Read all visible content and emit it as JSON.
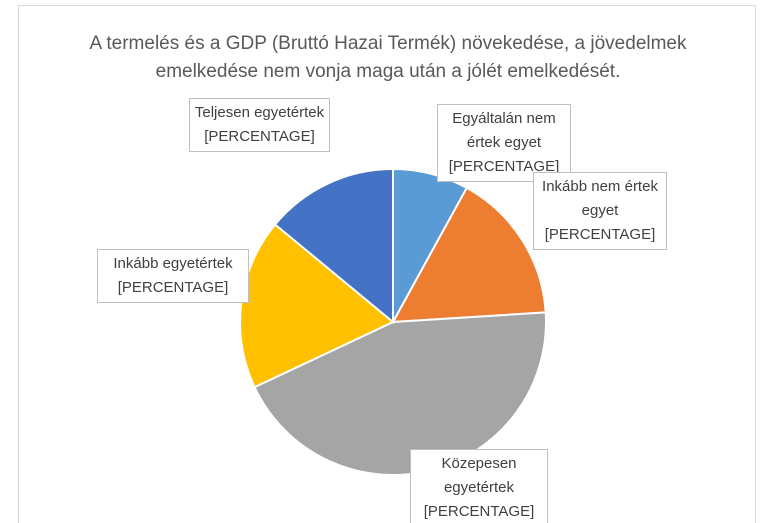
{
  "chart_data": {
    "type": "pie",
    "title": "A termelés és a GDP (Bruttó Hazai Termék) növekedése, a jövedelmek emelkedése nem vonja maga után a jólét emelkedését.",
    "categories": [
      "Egyáltalán nem értek egyet",
      "Inkább nem értek egyet",
      "Közepesen egyetértek",
      "Inkább egyetértek",
      "Teljesen egyetértek"
    ],
    "values": [
      8,
      16,
      44,
      18,
      14
    ],
    "value_labels": [
      "[PERCENTAGE]",
      "[PERCENTAGE]",
      "[PERCENTAGE]",
      "[PERCENTAGE]",
      "[PERCENTAGE]"
    ],
    "colors": [
      "#5b9bd5",
      "#ed7d31",
      "#a5a5a5",
      "#ffc000",
      "#4472c4"
    ]
  }
}
